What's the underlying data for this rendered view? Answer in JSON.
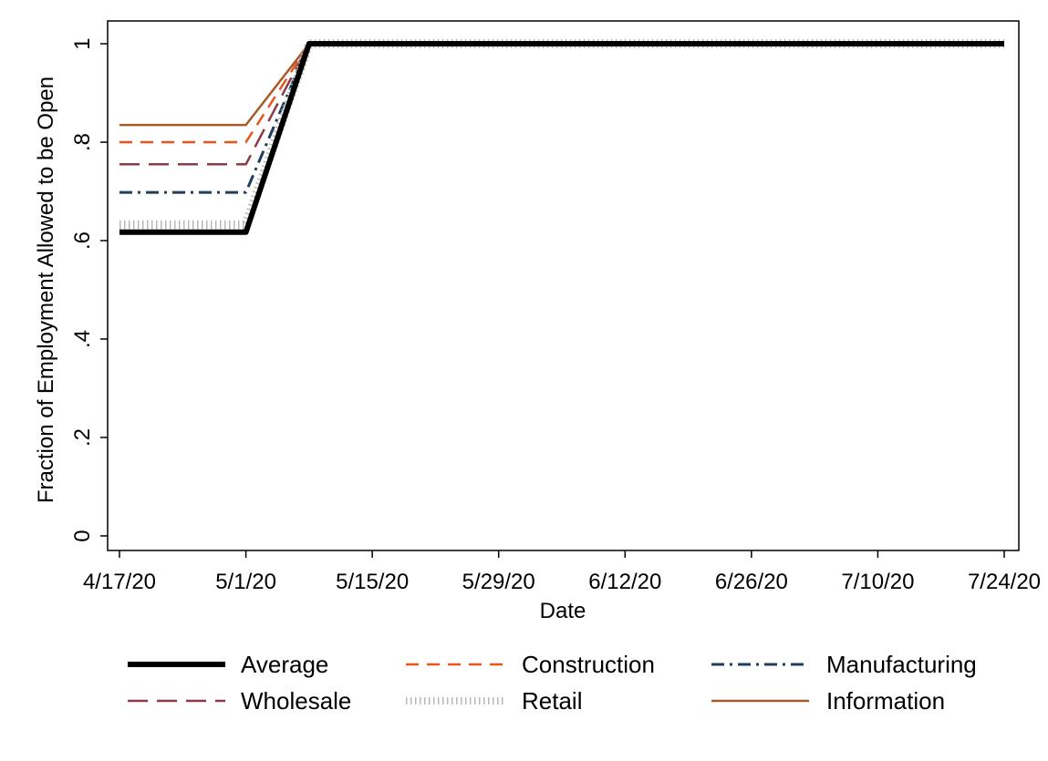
{
  "chart_data": {
    "type": "line",
    "title": "",
    "xlabel": "Date",
    "ylabel": "Fraction of Employment Allowed to be Open",
    "x_ticks": [
      "4/17/20",
      "5/1/20",
      "5/15/20",
      "5/29/20",
      "6/12/20",
      "6/26/20",
      "7/10/20",
      "7/24/20"
    ],
    "y_ticks": [
      "0",
      ".2",
      ".4",
      ".6",
      ".8",
      "1"
    ],
    "ylim": [
      0,
      1
    ],
    "xlim": [
      "4/17/20",
      "7/24/20"
    ],
    "grid": false,
    "legend_position": "bottom",
    "x": [
      "4/17/20",
      "5/1/20",
      "5/8/20",
      "7/24/20"
    ],
    "series": [
      {
        "name": "Average",
        "values": [
          0.617,
          0.617,
          1,
          1
        ],
        "color": "#000000",
        "style": "thick-solid"
      },
      {
        "name": "Construction",
        "values": [
          0.8,
          0.8,
          1,
          1
        ],
        "color": "#e8551a",
        "style": "dashed"
      },
      {
        "name": "Manufacturing",
        "values": [
          0.698,
          0.698,
          1,
          1
        ],
        "color": "#1f3f5e",
        "style": "dash-dot"
      },
      {
        "name": "Wholesale",
        "values": [
          0.755,
          0.755,
          1,
          1
        ],
        "color": "#8b3a4a",
        "style": "long-dash"
      },
      {
        "name": "Retail",
        "values": [
          0.632,
          0.632,
          1,
          1
        ],
        "color": "#b8b8b8",
        "style": "dotted"
      },
      {
        "name": "Information",
        "values": [
          0.835,
          0.835,
          1,
          1
        ],
        "color": "#a65a2a",
        "style": "solid"
      }
    ]
  }
}
